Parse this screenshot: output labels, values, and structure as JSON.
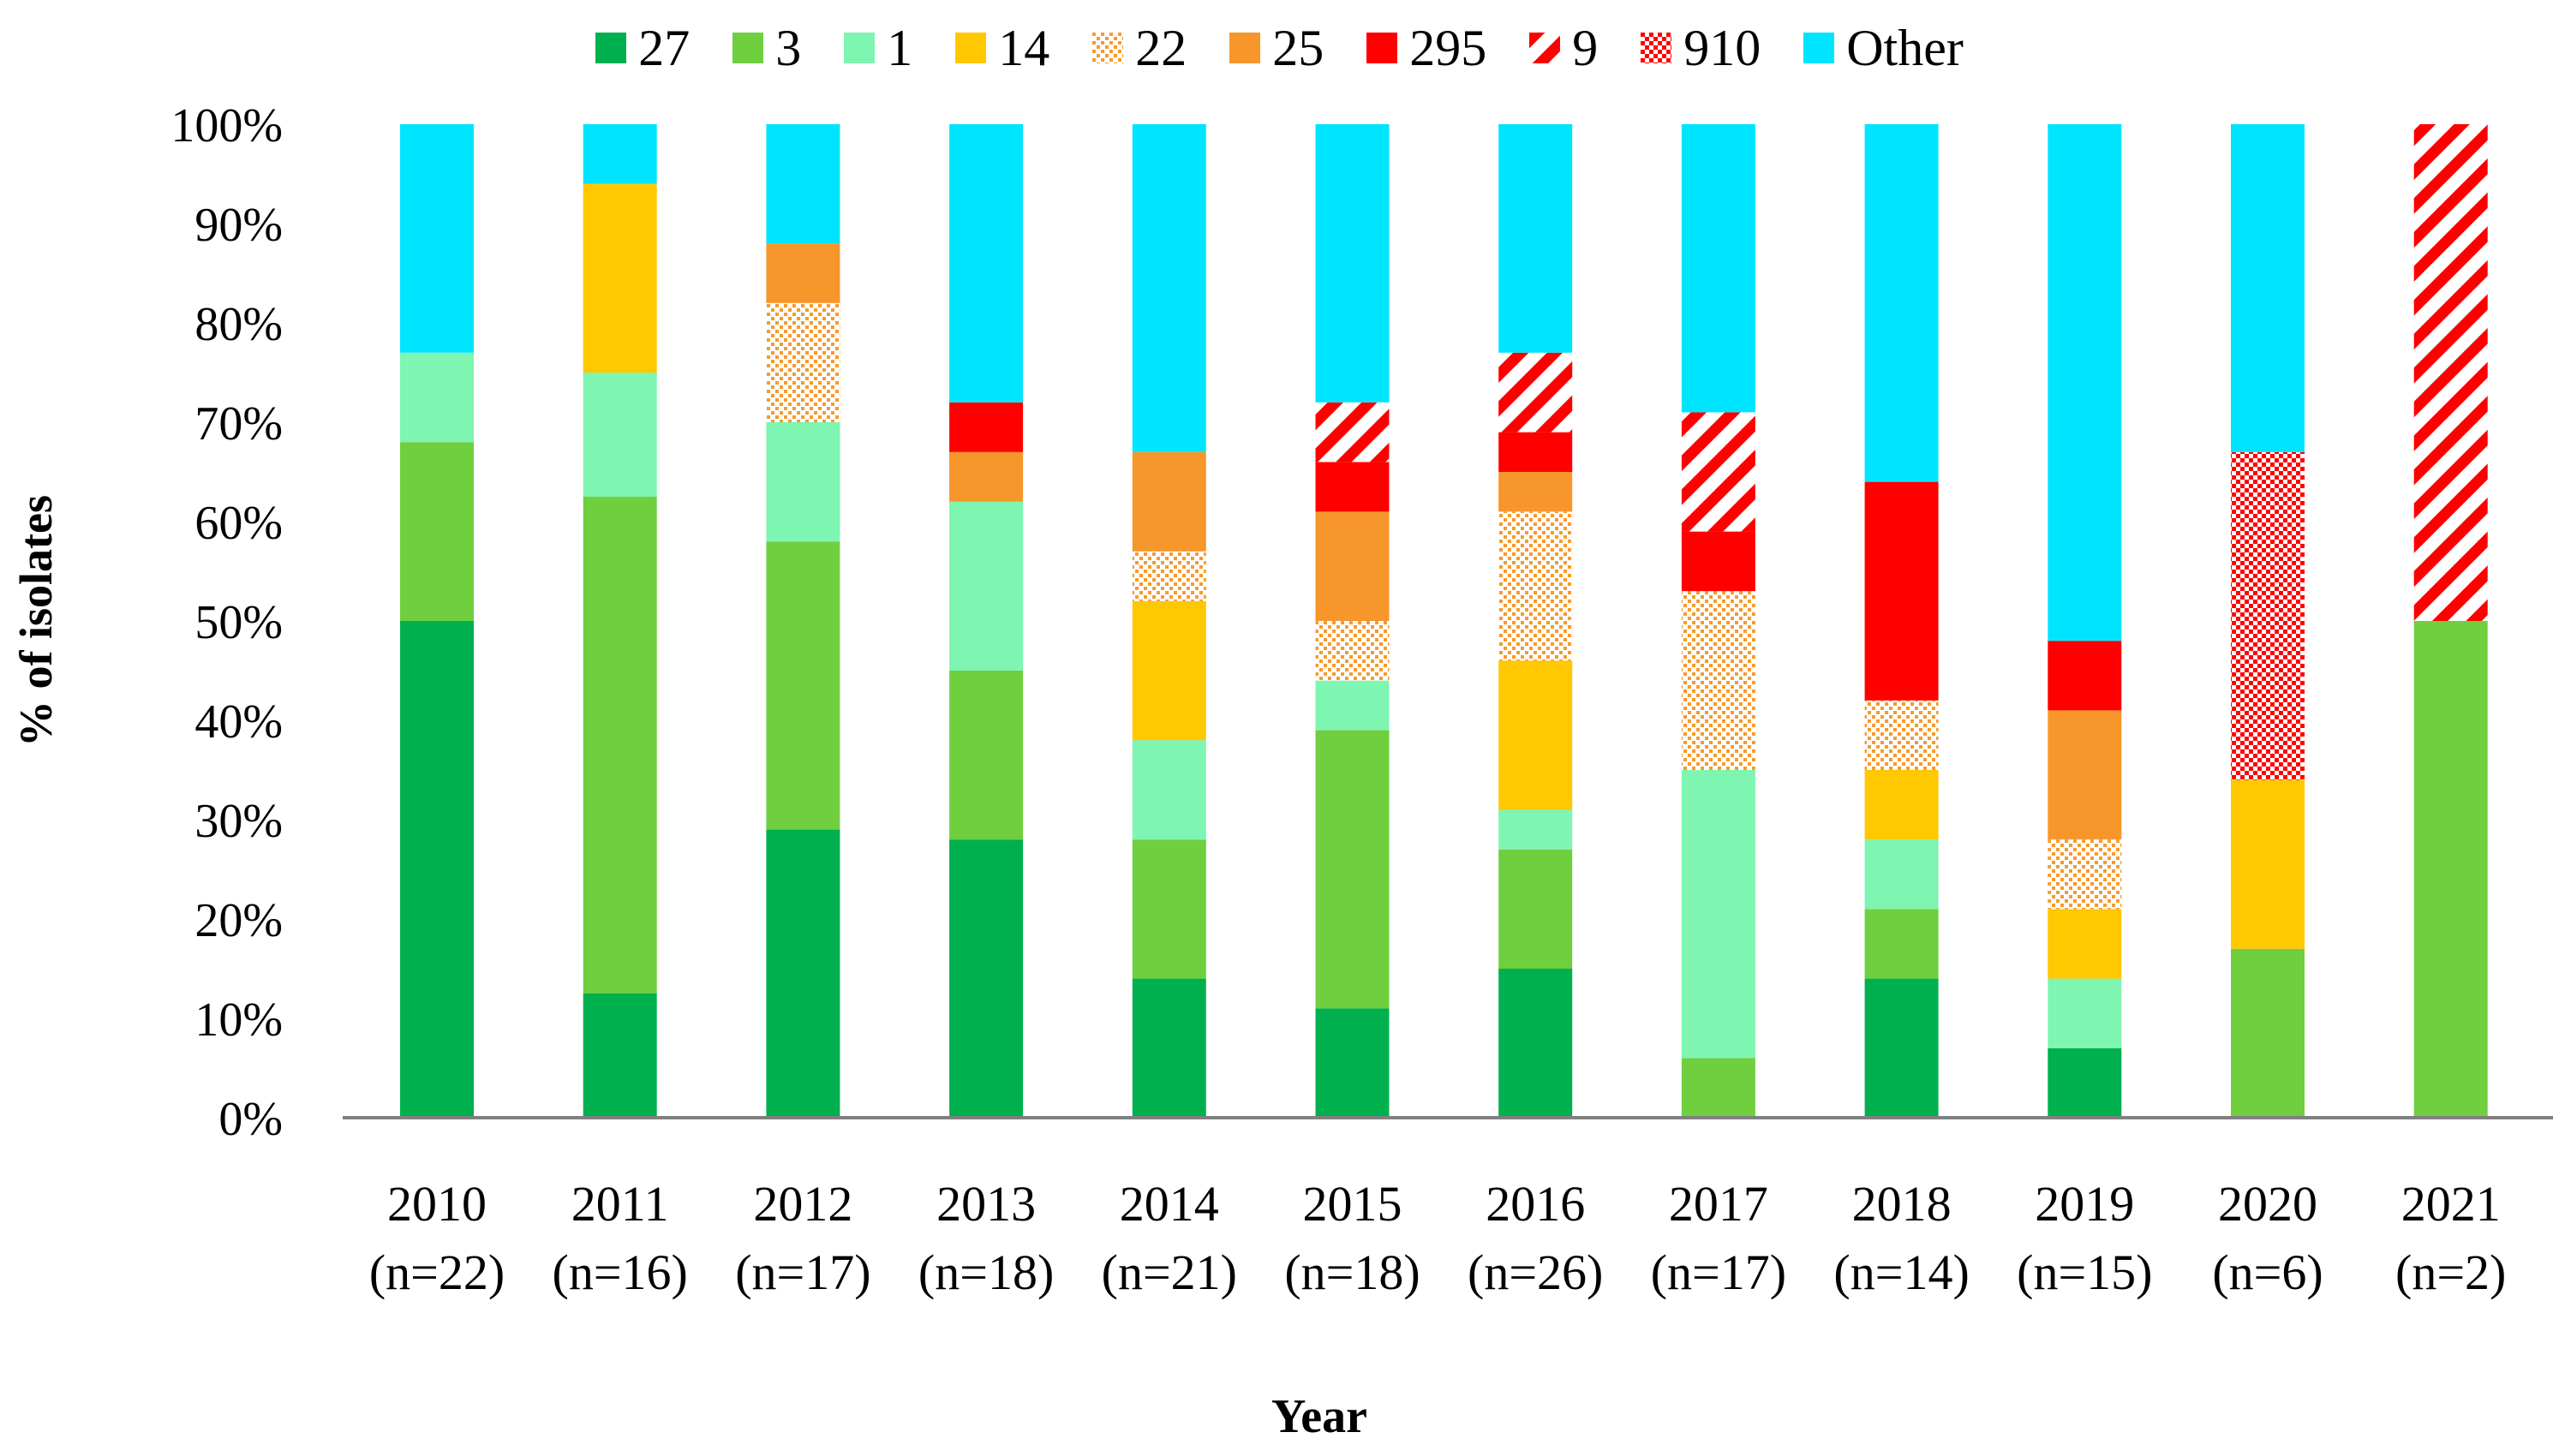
{
  "chart_data": {
    "type": "bar",
    "stacked": true,
    "ylabel": "% of isolates",
    "xlabel": "Year",
    "ylim": [
      0,
      100
    ],
    "yticks": [
      "0%",
      "10%",
      "20%",
      "30%",
      "40%",
      "50%",
      "60%",
      "70%",
      "80%",
      "90%",
      "100%"
    ],
    "categories": [
      "2010",
      "2011",
      "2012",
      "2013",
      "2014",
      "2015",
      "2016",
      "2017",
      "2018",
      "2019",
      "2020",
      "2021"
    ],
    "category_notes": [
      "(n=22)",
      "(n=16)",
      "(n=17)",
      "(n=18)",
      "(n=21)",
      "(n=18)",
      "(n=26)",
      "(n=17)",
      "(n=14)",
      "(n=15)",
      "(n=6)",
      "(n=2)"
    ],
    "legend_position": "top",
    "grid": false,
    "series": [
      {
        "name": "27",
        "color": "#00b04f",
        "pattern": "solid",
        "values": [
          50,
          12.5,
          29,
          28,
          14,
          11,
          15,
          0,
          14,
          7,
          0,
          0
        ]
      },
      {
        "name": "3",
        "color": "#6fcf3f",
        "pattern": "solid",
        "values": [
          18,
          50,
          29,
          17,
          14,
          28,
          12,
          6,
          7,
          0,
          17,
          50
        ]
      },
      {
        "name": "1",
        "color": "#7ef5b0",
        "pattern": "solid",
        "values": [
          9,
          12.5,
          12,
          17,
          10,
          5,
          4,
          29,
          7,
          7,
          0,
          0
        ]
      },
      {
        "name": "14",
        "color": "#ffc800",
        "pattern": "solid",
        "values": [
          0,
          19,
          0,
          0,
          14,
          0,
          15,
          0,
          7,
          7,
          17,
          0
        ]
      },
      {
        "name": "22",
        "color": "#f79a2c",
        "pattern": "dots",
        "values": [
          0,
          0,
          12,
          0,
          5,
          6,
          15,
          18,
          7,
          7,
          0,
          0
        ]
      },
      {
        "name": "25",
        "color": "#f7962a",
        "pattern": "solid",
        "values": [
          0,
          0,
          6,
          5,
          10,
          11,
          4,
          0,
          0,
          13,
          0,
          0
        ]
      },
      {
        "name": "295",
        "color": "#ff0000",
        "pattern": "solid",
        "values": [
          0,
          0,
          0,
          5,
          0,
          5,
          4,
          6,
          22,
          7,
          0,
          0
        ]
      },
      {
        "name": "9",
        "color": "#ff0000",
        "pattern": "diagonal",
        "values": [
          0,
          0,
          0,
          0,
          0,
          6,
          8,
          12,
          0,
          0,
          0,
          50
        ]
      },
      {
        "name": "910",
        "color": "#ff0000",
        "pattern": "checker",
        "values": [
          0,
          0,
          0,
          0,
          0,
          0,
          0,
          0,
          0,
          0,
          33,
          0
        ]
      },
      {
        "name": "Other",
        "color": "#00e5ff",
        "pattern": "solid",
        "values": [
          23,
          6,
          12,
          28,
          33,
          28,
          23,
          29,
          36,
          52,
          33,
          0
        ]
      }
    ]
  }
}
